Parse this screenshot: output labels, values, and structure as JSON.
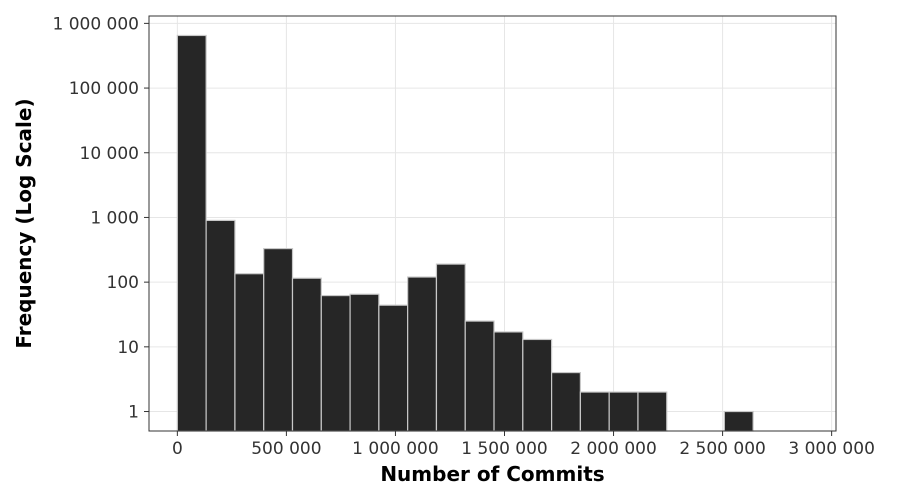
{
  "chart_data": {
    "type": "bar",
    "title": "",
    "xlabel": "Number of Commits",
    "ylabel": "Frequency (Log Scale)",
    "y_scale": "log",
    "grid": true,
    "xlim": [
      -130000,
      3020000
    ],
    "ylim": [
      0.5,
      1300000
    ],
    "x_ticks": [
      0,
      500000,
      1000000,
      1500000,
      2000000,
      2500000,
      3000000
    ],
    "x_tick_labels": [
      "0",
      "500 000",
      "1 000 000",
      "1 500 000",
      "2 000 000",
      "2 500 000",
      "3 000 000"
    ],
    "y_ticks": [
      1,
      10,
      100,
      1000,
      10000,
      100000,
      1000000
    ],
    "y_tick_labels": [
      "1",
      "10",
      "100",
      "1 000",
      "10 000",
      "100 000",
      "1 000 000"
    ],
    "bar_color": "#262626",
    "bar_edge_color": "#c8c8c8",
    "bins": [
      {
        "x0": 0,
        "x1": 132000,
        "count": 650000
      },
      {
        "x0": 132000,
        "x1": 264000,
        "count": 900
      },
      {
        "x0": 264000,
        "x1": 396000,
        "count": 135
      },
      {
        "x0": 396000,
        "x1": 528000,
        "count": 330
      },
      {
        "x0": 528000,
        "x1": 660000,
        "count": 115
      },
      {
        "x0": 660000,
        "x1": 792000,
        "count": 62
      },
      {
        "x0": 792000,
        "x1": 924000,
        "count": 65
      },
      {
        "x0": 924000,
        "x1": 1056000,
        "count": 44
      },
      {
        "x0": 1056000,
        "x1": 1188000,
        "count": 120
      },
      {
        "x0": 1188000,
        "x1": 1320000,
        "count": 190
      },
      {
        "x0": 1320000,
        "x1": 1452000,
        "count": 25
      },
      {
        "x0": 1452000,
        "x1": 1584000,
        "count": 17
      },
      {
        "x0": 1584000,
        "x1": 1716000,
        "count": 13
      },
      {
        "x0": 1716000,
        "x1": 1848000,
        "count": 4
      },
      {
        "x0": 1848000,
        "x1": 1980000,
        "count": 2
      },
      {
        "x0": 1980000,
        "x1": 2112000,
        "count": 2
      },
      {
        "x0": 2112000,
        "x1": 2244000,
        "count": 2
      },
      {
        "x0": 2508000,
        "x1": 2640000,
        "count": 1
      }
    ]
  }
}
